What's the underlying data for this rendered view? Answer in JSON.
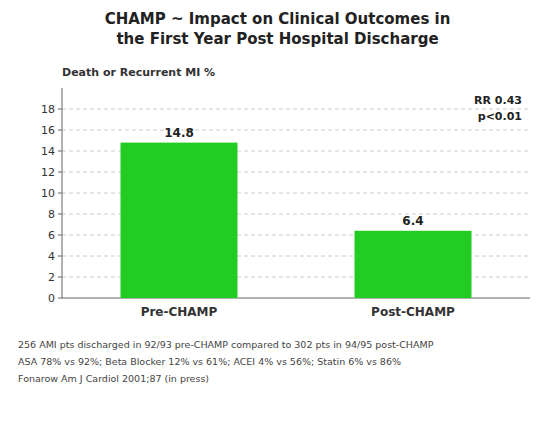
{
  "chart_data": {
    "type": "bar",
    "title": "CHAMP ~ Impact on Clinical Outcomes in\nthe First Year Post Hospital Discharge",
    "y_label": "Death or Recurrent MI %",
    "categories": [
      "Pre-CHAMP",
      "Post-CHAMP"
    ],
    "values": [
      14.8,
      6.4
    ],
    "color": "#22CC22",
    "ylim": [
      0,
      20
    ],
    "yticks": [
      0,
      2,
      4,
      6,
      8,
      10,
      12,
      14,
      16,
      18
    ],
    "grid": true,
    "data_labels": true,
    "annotations": [
      "RR 0.43",
      "p<0.01"
    ],
    "footnotes": [
      "256 AMI pts discharged in 92/93 pre-CHAMP compared to 302 pts in 94/95 post-CHAMP",
      "ASA 78% vs 92%; Beta Blocker 12% vs 61%; ACEI 4% vs 56%; Statin 6% vs 86%",
      "Fonarow Am J Cardiol 2001;87 (in press)"
    ]
  }
}
